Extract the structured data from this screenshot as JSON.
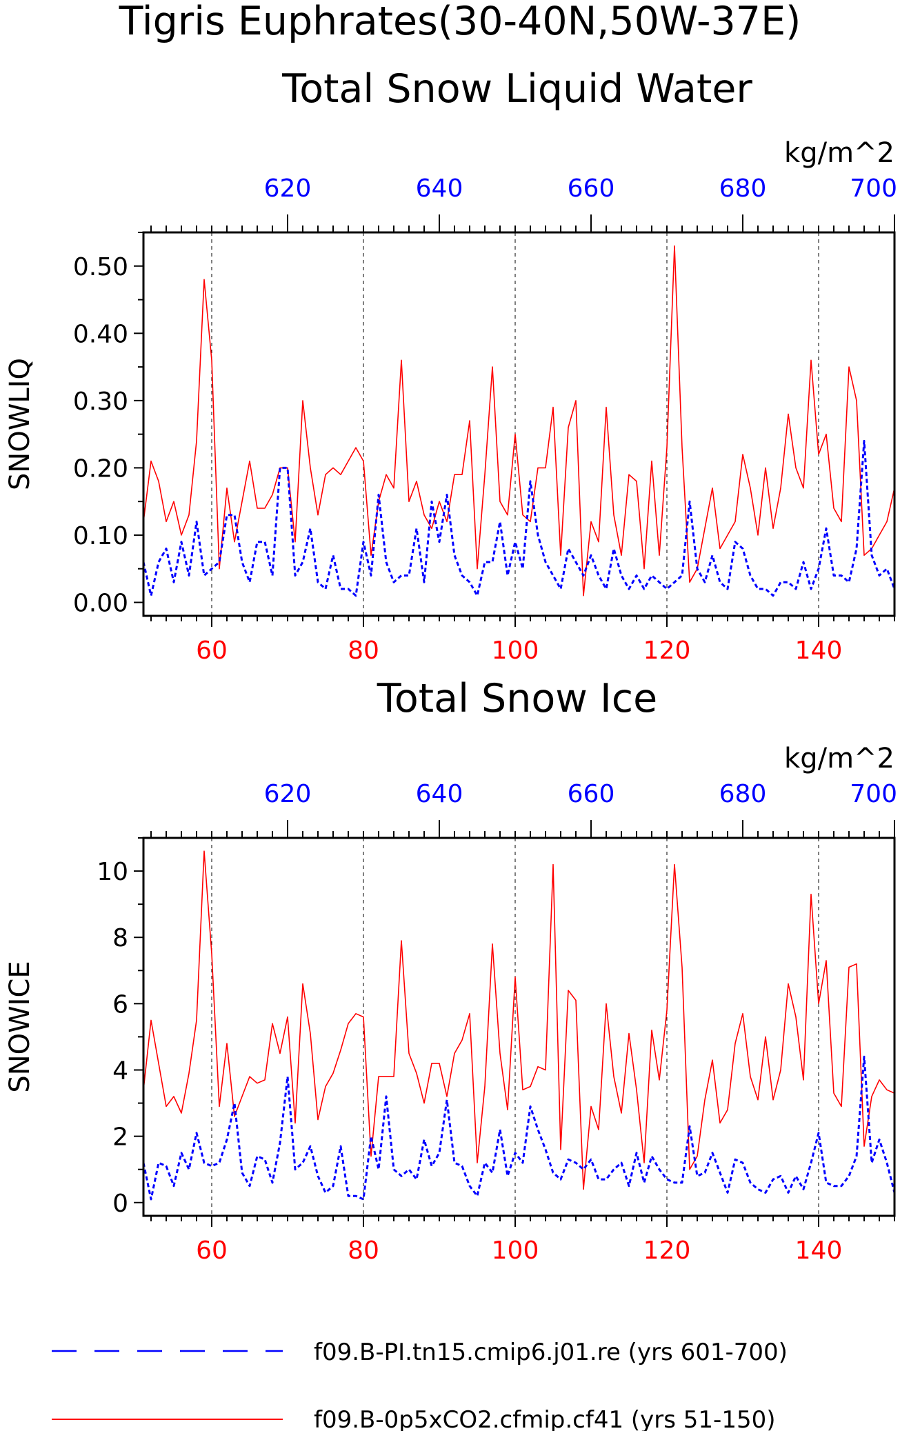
{
  "figure": {
    "title_line1": "Tigris Euphrates(30-40N,50W-37E)",
    "colors": {
      "series_a": "#ff0000",
      "series_b": "#0000ff",
      "axis": "#000000",
      "grid": "#000000"
    }
  },
  "chart_data": [
    {
      "type": "line",
      "title": "Total Snow Liquid Water",
      "units": "kg/m^2",
      "ylabel": "SNOWLIQ",
      "ylim": [
        -0.02,
        0.55
      ],
      "yticks": [
        0.0,
        0.1,
        0.2,
        0.3,
        0.4,
        0.5
      ],
      "ytick_labels": [
        "0.00",
        "0.10",
        "0.20",
        "0.30",
        "0.40",
        "0.50"
      ],
      "x_bottom": {
        "range": [
          51,
          150
        ],
        "ticks": [
          60,
          80,
          100,
          120,
          140
        ],
        "tick_labels": [
          "60",
          "80",
          "100",
          "120",
          "140"
        ],
        "color": "#ff0000"
      },
      "x_top": {
        "range": [
          601,
          700
        ],
        "ticks": [
          620,
          640,
          660,
          680,
          700
        ],
        "tick_labels": [
          "620",
          "640",
          "660",
          "680",
          "700"
        ],
        "color": "#0000ff"
      },
      "vlines_x_bottom": [
        60,
        80,
        100,
        120,
        140
      ],
      "series": [
        {
          "name": "f09.B-0p5xCO2.cfmip.cf41 (yrs 51-150)",
          "x_axis": "bottom",
          "x_start": 51,
          "style": "solid",
          "color": "#ff0000",
          "values": [
            0.12,
            0.21,
            0.18,
            0.12,
            0.15,
            0.1,
            0.13,
            0.24,
            0.48,
            0.36,
            0.05,
            0.17,
            0.09,
            0.15,
            0.21,
            0.14,
            0.14,
            0.16,
            0.2,
            0.2,
            0.09,
            0.3,
            0.2,
            0.13,
            0.19,
            0.2,
            0.19,
            0.21,
            0.23,
            0.21,
            0.07,
            0.15,
            0.19,
            0.17,
            0.36,
            0.15,
            0.18,
            0.13,
            0.11,
            0.15,
            0.12,
            0.19,
            0.19,
            0.27,
            0.05,
            0.19,
            0.35,
            0.15,
            0.13,
            0.25,
            0.13,
            0.12,
            0.2,
            0.2,
            0.29,
            0.07,
            0.26,
            0.3,
            0.01,
            0.12,
            0.09,
            0.29,
            0.13,
            0.07,
            0.19,
            0.18,
            0.05,
            0.21,
            0.07,
            0.23,
            0.53,
            0.23,
            0.03,
            0.05,
            0.11,
            0.17,
            0.08,
            0.1,
            0.12,
            0.22,
            0.17,
            0.1,
            0.2,
            0.11,
            0.17,
            0.28,
            0.2,
            0.17,
            0.36,
            0.22,
            0.25,
            0.14,
            0.12,
            0.35,
            0.3,
            0.07,
            0.08,
            0.1,
            0.12,
            0.17
          ]
        },
        {
          "name": "f09.B-PI.tn15.cmip6.j01.re (yrs 601-700)",
          "x_axis": "top",
          "x_start": 601,
          "style": "dashed",
          "color": "#0000ff",
          "values": [
            0.06,
            0.01,
            0.06,
            0.08,
            0.03,
            0.09,
            0.04,
            0.12,
            0.04,
            0.05,
            0.06,
            0.13,
            0.13,
            0.06,
            0.03,
            0.09,
            0.09,
            0.04,
            0.2,
            0.2,
            0.04,
            0.06,
            0.11,
            0.03,
            0.02,
            0.07,
            0.02,
            0.02,
            0.01,
            0.09,
            0.04,
            0.16,
            0.06,
            0.03,
            0.04,
            0.04,
            0.11,
            0.03,
            0.15,
            0.09,
            0.16,
            0.07,
            0.04,
            0.03,
            0.01,
            0.06,
            0.06,
            0.12,
            0.04,
            0.09,
            0.05,
            0.18,
            0.1,
            0.06,
            0.04,
            0.02,
            0.08,
            0.06,
            0.04,
            0.07,
            0.04,
            0.02,
            0.08,
            0.04,
            0.02,
            0.04,
            0.02,
            0.04,
            0.03,
            0.02,
            0.03,
            0.04,
            0.15,
            0.05,
            0.03,
            0.07,
            0.03,
            0.02,
            0.09,
            0.08,
            0.04,
            0.02,
            0.02,
            0.01,
            0.03,
            0.03,
            0.02,
            0.06,
            0.02,
            0.05,
            0.11,
            0.04,
            0.04,
            0.03,
            0.08,
            0.24,
            0.07,
            0.04,
            0.05,
            0.02
          ]
        }
      ]
    },
    {
      "type": "line",
      "title": "Total Snow Ice",
      "units": "kg/m^2",
      "ylabel": "SNOWICE",
      "ylim": [
        -0.4,
        11.0
      ],
      "yticks": [
        0,
        2,
        4,
        6,
        8,
        10
      ],
      "ytick_labels": [
        "0",
        "2",
        "4",
        "6",
        "8",
        "10"
      ],
      "x_bottom": {
        "range": [
          51,
          150
        ],
        "ticks": [
          60,
          80,
          100,
          120,
          140
        ],
        "tick_labels": [
          "60",
          "80",
          "100",
          "120",
          "140"
        ],
        "color": "#ff0000"
      },
      "x_top": {
        "range": [
          601,
          700
        ],
        "ticks": [
          620,
          640,
          660,
          680,
          700
        ],
        "tick_labels": [
          "620",
          "640",
          "660",
          "680",
          "700"
        ],
        "color": "#0000ff"
      },
      "vlines_x_bottom": [
        60,
        80,
        100,
        120,
        140
      ],
      "series": [
        {
          "name": "f09.B-0p5xCO2.cfmip.cf41 (yrs 51-150)",
          "x_axis": "bottom",
          "x_start": 51,
          "style": "solid",
          "color": "#ff0000",
          "values": [
            3.4,
            5.5,
            4.2,
            2.9,
            3.2,
            2.7,
            3.9,
            5.5,
            10.6,
            7.5,
            2.9,
            4.8,
            2.6,
            3.2,
            3.8,
            3.6,
            3.7,
            5.4,
            4.5,
            5.6,
            2.4,
            6.6,
            5.1,
            2.5,
            3.5,
            3.9,
            4.6,
            5.4,
            5.7,
            5.6,
            1.4,
            3.8,
            3.8,
            3.8,
            7.9,
            4.5,
            3.9,
            3.0,
            4.2,
            4.2,
            3.2,
            4.5,
            4.9,
            5.7,
            1.2,
            3.5,
            7.8,
            4.5,
            2.8,
            6.8,
            3.4,
            3.5,
            4.1,
            4.0,
            10.2,
            1.6,
            6.4,
            6.1,
            0.4,
            2.9,
            2.2,
            6.0,
            3.8,
            2.7,
            5.1,
            3.4,
            1.2,
            5.2,
            3.7,
            5.8,
            10.2,
            7.1,
            1.0,
            1.4,
            3.1,
            4.3,
            2.4,
            2.8,
            4.8,
            5.7,
            3.8,
            3.1,
            5.0,
            3.1,
            4.0,
            6.6,
            5.6,
            3.7,
            9.3,
            6.0,
            7.3,
            3.3,
            2.9,
            7.1,
            7.2,
            1.7,
            3.2,
            3.7,
            3.4,
            3.3
          ]
        },
        {
          "name": "f09.B-PI.tn15.cmip6.j01.re (yrs 601-700)",
          "x_axis": "top",
          "x_start": 601,
          "style": "dashed",
          "color": "#0000ff",
          "values": [
            1.2,
            0.1,
            1.2,
            1.1,
            0.5,
            1.5,
            1.0,
            2.1,
            1.2,
            1.1,
            1.2,
            1.9,
            3.0,
            0.9,
            0.5,
            1.4,
            1.3,
            0.6,
            1.8,
            3.8,
            1.0,
            1.2,
            1.7,
            0.8,
            0.3,
            0.5,
            1.7,
            0.2,
            0.2,
            0.1,
            2.0,
            1.0,
            3.2,
            1.0,
            0.8,
            1.0,
            0.7,
            1.9,
            1.1,
            1.5,
            3.1,
            1.2,
            1.1,
            0.5,
            0.2,
            1.2,
            0.9,
            2.2,
            0.8,
            1.5,
            1.2,
            2.9,
            2.2,
            1.6,
            0.9,
            0.7,
            1.3,
            1.2,
            1.0,
            1.3,
            0.7,
            0.7,
            1.0,
            1.2,
            0.5,
            1.5,
            0.6,
            1.4,
            1.0,
            0.7,
            0.6,
            0.6,
            2.3,
            0.8,
            0.9,
            1.5,
            0.9,
            0.3,
            1.3,
            1.2,
            0.6,
            0.4,
            0.3,
            0.7,
            0.8,
            0.3,
            0.8,
            0.4,
            1.2,
            2.1,
            0.6,
            0.5,
            0.5,
            0.8,
            1.4,
            4.4,
            1.2,
            1.9,
            1.2,
            0.3
          ]
        }
      ]
    }
  ],
  "legend": {
    "entries": [
      {
        "label": "f09.B-PI.tn15.cmip6.j01.re (yrs 601-700)",
        "style": "long-dash",
        "color": "#0000ff"
      },
      {
        "label": "f09.B-0p5xCO2.cfmip.cf41 (yrs 51-150)",
        "style": "solid",
        "color": "#ff0000"
      }
    ]
  }
}
